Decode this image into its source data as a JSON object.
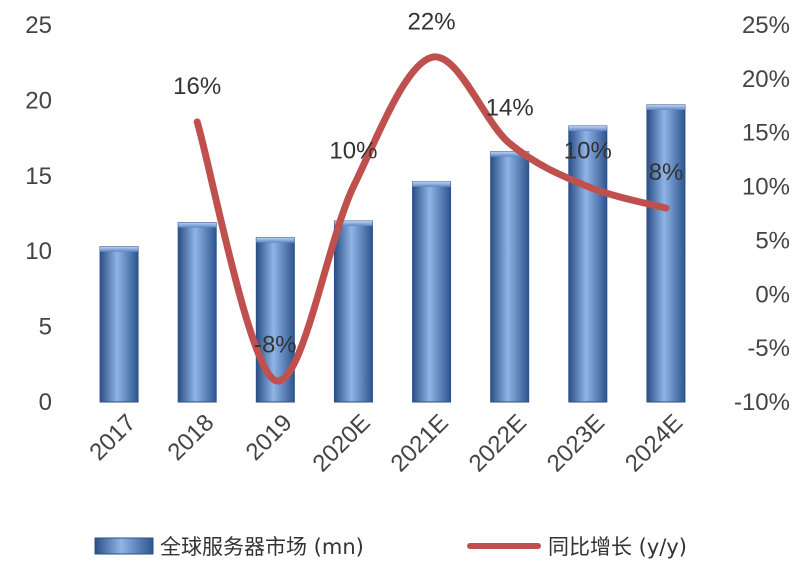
{
  "chart_data": {
    "type": "bar",
    "categories": [
      "2017",
      "2018",
      "2019",
      "2020E",
      "2021E",
      "2022E",
      "2023E",
      "2024E"
    ],
    "series": [
      {
        "name": "全球服务器市场 (mn)",
        "type": "bar",
        "axis": "left",
        "values": [
          10.3,
          11.9,
          10.9,
          12.0,
          14.6,
          16.6,
          18.3,
          19.7
        ]
      },
      {
        "name": "同比增长 (y/y)",
        "type": "line",
        "axis": "right",
        "values": [
          null,
          16,
          -8,
          10,
          22,
          14,
          10,
          8
        ],
        "labels": [
          "",
          "16%",
          "-8%",
          "10%",
          "22%",
          "14%",
          "10%",
          "8%"
        ]
      }
    ],
    "y_left": {
      "min": 0,
      "max": 25,
      "ticks": [
        "0",
        "5",
        "10",
        "15",
        "20",
        "25"
      ]
    },
    "y_right": {
      "min": -10,
      "max": 25,
      "ticks": [
        "-10%",
        "-5%",
        "0%",
        "5%",
        "10%",
        "15%",
        "20%",
        "25%"
      ]
    },
    "grid": false,
    "legend_position": "bottom",
    "colors": {
      "bar": "#4a78b8",
      "bar_light": "#8fb4e6",
      "bar_dark": "#2b4f86",
      "line": "#c0504d"
    }
  }
}
